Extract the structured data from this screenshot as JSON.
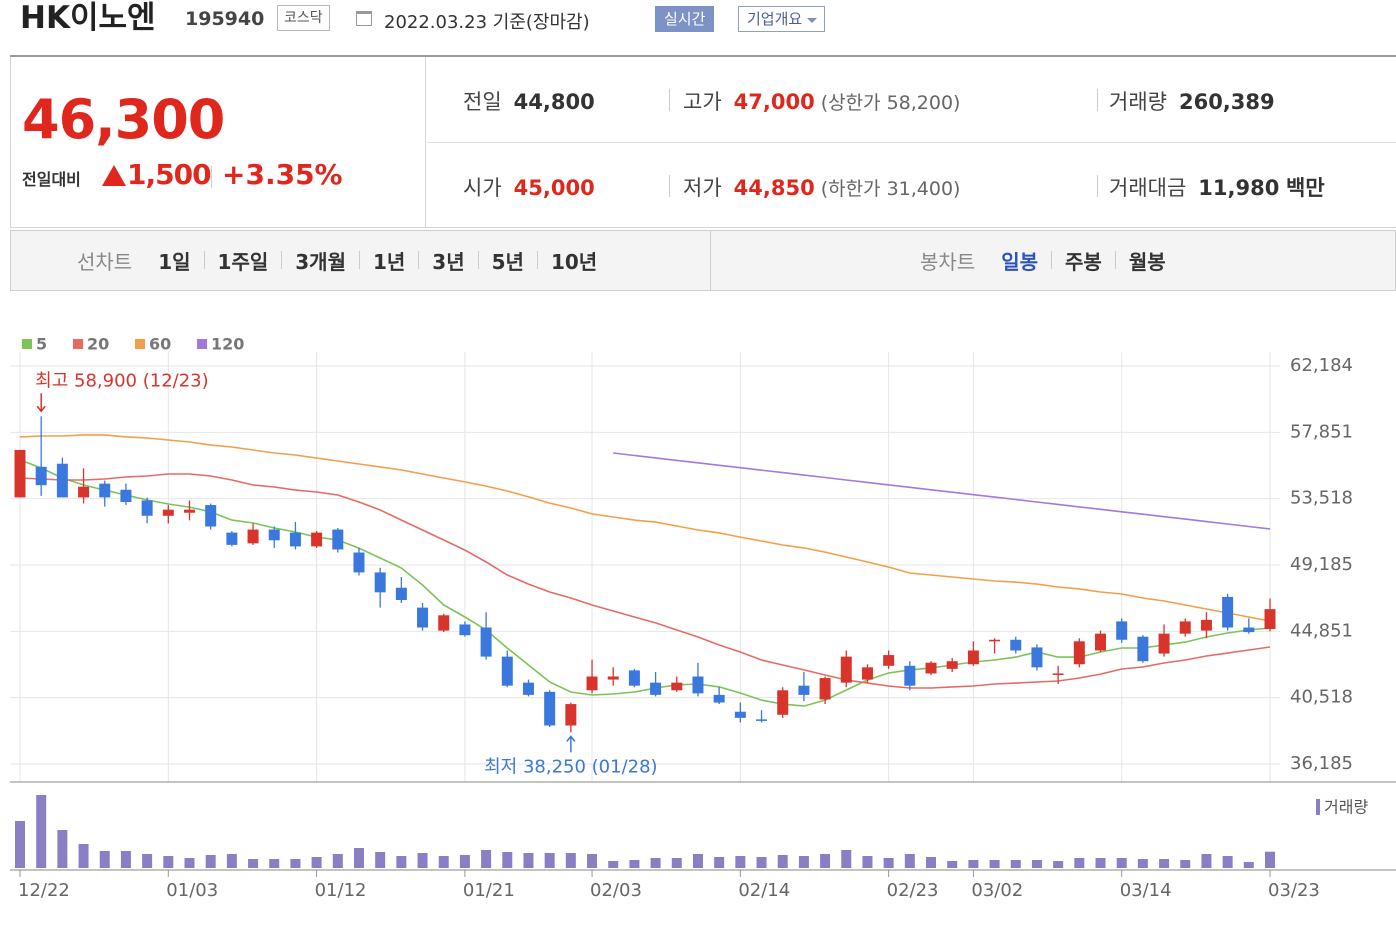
{
  "header": {
    "name": "HK이노엔",
    "code": "195940",
    "market": "코스닥",
    "date": "2022.03.23 기준(장마감)",
    "realtime": "실시간",
    "company_info": "기업개요"
  },
  "quote": {
    "price": "46,300",
    "change_label": "전일대비",
    "change": "1,500",
    "change_rate": "+3.35%"
  },
  "stats": [
    {
      "label": "전일",
      "value": "44,800"
    },
    {
      "label": "고가",
      "value": "47,000",
      "note": "(상한가 58,200)"
    },
    {
      "label": "거래량",
      "value": "260,389"
    },
    {
      "label": "시가",
      "value": "45,000"
    },
    {
      "label": "저가",
      "value": "44,850",
      "note": "(하한가 31,400)"
    },
    {
      "label": "거래대금",
      "value": "11,980",
      "unit": "백만"
    }
  ],
  "nav": {
    "line_label": "선차트",
    "line_periods": [
      "1일",
      "1주일",
      "3개월",
      "1년",
      "3년",
      "5년",
      "10년"
    ],
    "candle_label": "봉차트",
    "candle_periods": [
      "일봉",
      "주봉",
      "월봉"
    ]
  },
  "chart_data": {
    "type": "candlestick",
    "categories": [
      "12/22",
      null,
      null,
      null,
      null,
      null,
      null,
      "01/03",
      null,
      null,
      null,
      null,
      null,
      null,
      "01/12",
      null,
      null,
      null,
      null,
      null,
      null,
      "01/21",
      null,
      null,
      null,
      null,
      null,
      "02/03",
      null,
      null,
      null,
      null,
      null,
      null,
      "02/14",
      null,
      null,
      null,
      null,
      null,
      null,
      "02/23",
      null,
      null,
      null,
      "03/02",
      null,
      null,
      null,
      null,
      null,
      null,
      "03/14",
      null,
      null,
      null,
      null,
      null,
      null,
      "03/23"
    ],
    "open": [
      53600,
      55600,
      55800,
      53600,
      54500,
      54100,
      53400,
      52400,
      52600,
      53100,
      51300,
      50600,
      51500,
      51300,
      50400,
      51500,
      50000,
      48700,
      47700,
      46400,
      44900,
      45300,
      45100,
      43200,
      41500,
      40900,
      38700,
      41000,
      41700,
      42300,
      41500,
      41000,
      41900,
      40700,
      39600,
      39100,
      39400,
      41300,
      40400,
      41500,
      41700,
      42600,
      42600,
      42100,
      42400,
      42700,
      44200,
      44300,
      43800,
      42000,
      42700,
      43600,
      45500,
      44500,
      43400,
      44700,
      44900,
      47100,
      45100,
      45000
    ],
    "high": [
      56700,
      58900,
      56200,
      55500,
      54700,
      54500,
      53600,
      53100,
      53400,
      53200,
      51400,
      51900,
      51700,
      52000,
      51400,
      51600,
      50300,
      49000,
      48400,
      46700,
      46000,
      45500,
      46100,
      43600,
      41700,
      41000,
      40200,
      43000,
      42500,
      42400,
      42200,
      41900,
      42800,
      41200,
      40200,
      39700,
      41200,
      42200,
      41900,
      43600,
      42700,
      43600,
      42900,
      42900,
      43100,
      44200,
      44400,
      44500,
      44000,
      42600,
      44400,
      44900,
      45700,
      44600,
      45300,
      45700,
      46100,
      47300,
      45700,
      47000
    ],
    "low": [
      53600,
      53700,
      53600,
      53200,
      53000,
      53100,
      51900,
      51900,
      52100,
      51500,
      50400,
      50500,
      50300,
      50200,
      50300,
      50000,
      48500,
      46400,
      46700,
      44900,
      44800,
      44500,
      43000,
      41200,
      40600,
      38600,
      38250,
      40800,
      41300,
      41200,
      40600,
      40900,
      40600,
      40100,
      38900,
      38900,
      39200,
      40300,
      40100,
      41200,
      41500,
      42400,
      41000,
      42000,
      42200,
      42600,
      43400,
      43400,
      42300,
      41400,
      42500,
      43500,
      44100,
      42800,
      43200,
      44500,
      44400,
      44900,
      44700,
      44850
    ],
    "close": [
      56700,
      54400,
      53600,
      54300,
      53600,
      53300,
      52400,
      52800,
      52800,
      51700,
      50500,
      51500,
      50800,
      50400,
      51300,
      50200,
      48700,
      47400,
      46900,
      45100,
      45900,
      44600,
      43200,
      41300,
      40700,
      38700,
      40100,
      41900,
      41900,
      41300,
      40700,
      41500,
      40800,
      40200,
      39200,
      39000,
      41000,
      40700,
      41800,
      43200,
      42500,
      43300,
      41300,
      42800,
      42900,
      43600,
      44300,
      43600,
      42500,
      42100,
      44200,
      44700,
      44300,
      42900,
      44700,
      45500,
      45600,
      45100,
      44800,
      46300
    ],
    "volume": [
      752000,
      1168000,
      608000,
      384000,
      272000,
      272000,
      224000,
      192000,
      160000,
      208000,
      224000,
      144000,
      144000,
      144000,
      176000,
      224000,
      320000,
      256000,
      192000,
      240000,
      192000,
      208000,
      288000,
      256000,
      240000,
      240000,
      240000,
      224000,
      112000,
      128000,
      160000,
      160000,
      224000,
      176000,
      192000,
      176000,
      208000,
      192000,
      224000,
      288000,
      192000,
      160000,
      224000,
      176000,
      112000,
      128000,
      128000,
      128000,
      128000,
      112000,
      160000,
      160000,
      160000,
      144000,
      144000,
      128000,
      224000,
      192000,
      96000,
      260389
    ],
    "volume_label": "거래량",
    "volume_color": "#8a7fc4",
    "up_color": "#d9342b",
    "down_color": "#3a78de",
    "moving_averages": [
      {
        "name": "5",
        "color": "#7cc35a",
        "values": [
          56050,
          55520,
          54870,
          54410,
          54080,
          53760,
          53430,
          53170,
          52970,
          52650,
          52120,
          51930,
          51600,
          51340,
          51010,
          50820,
          50290,
          49640,
          48990,
          47880,
          46570,
          45790,
          44940,
          43760,
          42650,
          41540,
          40890,
          40690,
          40760,
          40890,
          41150,
          41350,
          41410,
          41220,
          40820,
          40360,
          40100,
          39970,
          40360,
          41020,
          41670,
          42130,
          42330,
          42460,
          42650,
          42850,
          42980,
          43170,
          43500,
          43170,
          43170,
          43500,
          43760,
          43760,
          43960,
          44150,
          44480,
          44740,
          44940,
          45070
        ]
      },
      {
        "name": "20",
        "color": "#e56b64",
        "values": [
          54870,
          54800,
          54740,
          54740,
          54800,
          54930,
          55000,
          55130,
          55130,
          55000,
          54740,
          54410,
          54280,
          54080,
          53950,
          53760,
          53300,
          52780,
          52120,
          51470,
          50820,
          50160,
          49380,
          48530,
          47940,
          47420,
          47030,
          46570,
          46180,
          45790,
          45400,
          44940,
          44480,
          43960,
          43500,
          42980,
          42650,
          42330,
          42000,
          41670,
          41470,
          41280,
          41150,
          41150,
          41220,
          41280,
          41410,
          41470,
          41540,
          41610,
          41800,
          42060,
          42390,
          42520,
          42780,
          42980,
          43240,
          43430,
          43630,
          43830
        ]
      },
      {
        "name": "60",
        "color": "#f0a04b",
        "values": [
          57550,
          57610,
          57610,
          57680,
          57680,
          57550,
          57480,
          57350,
          57220,
          57020,
          56890,
          56700,
          56500,
          56370,
          56170,
          55980,
          55780,
          55590,
          55390,
          55130,
          54870,
          54610,
          54340,
          54020,
          53630,
          53230,
          52910,
          52520,
          52320,
          52120,
          51990,
          51730,
          51470,
          51280,
          51010,
          50750,
          50490,
          50300,
          50030,
          49710,
          49380,
          49050,
          48660,
          48530,
          48400,
          48270,
          48140,
          48070,
          47940,
          47750,
          47620,
          47420,
          47290,
          47030,
          46830,
          46570,
          46310,
          46050,
          45790,
          45520
        ]
      },
      {
        "name": "120",
        "color": "#a27ade",
        "values": [
          null,
          null,
          null,
          null,
          null,
          null,
          null,
          null,
          null,
          null,
          null,
          null,
          null,
          null,
          null,
          null,
          null,
          null,
          null,
          null,
          null,
          null,
          null,
          null,
          null,
          null,
          null,
          null,
          56500,
          56340,
          56180,
          56020,
          55860,
          55700,
          55540,
          55380,
          55220,
          55060,
          54900,
          54740,
          54580,
          54420,
          54260,
          54100,
          53940,
          53780,
          53620,
          53460,
          53300,
          53140,
          52980,
          52820,
          52660,
          52500,
          52340,
          52180,
          52020,
          51860,
          51700,
          51540
        ]
      }
    ],
    "high_label": "최고 58,900 (12/23)",
    "low_label": "최저 38,250 (01/28)",
    "ylim": [
      36185,
      62184
    ],
    "yticks": [
      {
        "value": 36185,
        "label": "36,185"
      },
      {
        "value": 40518,
        "label": "40,518"
      },
      {
        "value": 44851,
        "label": "44,851"
      },
      {
        "value": 49185,
        "label": "49,185"
      },
      {
        "value": 53518,
        "label": "53,518"
      },
      {
        "value": 57851,
        "label": "57,851"
      },
      {
        "value": 62184,
        "label": "62,184"
      }
    ],
    "grid": true
  }
}
